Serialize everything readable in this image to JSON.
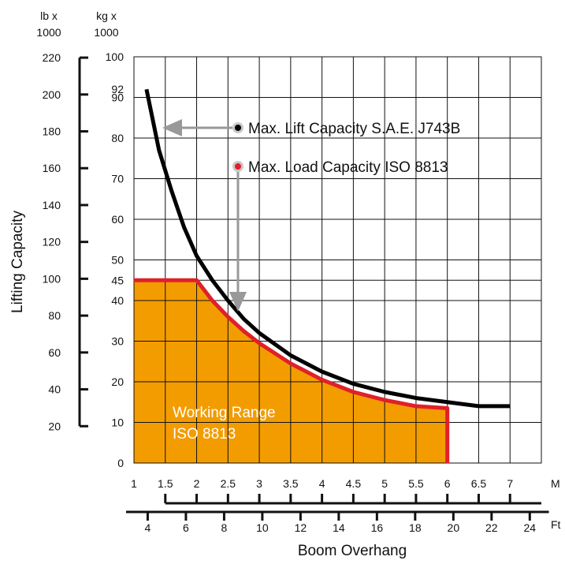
{
  "chart_data": {
    "type": "area",
    "title": "",
    "xlabel": "Boom Overhang",
    "ylabel": "Lifting Capacity",
    "x_unit_top": "M",
    "x_unit_bottom": "Ft",
    "y_unit_left": [
      "lb x",
      "1000"
    ],
    "y_unit_right": [
      "kg x",
      "1000"
    ],
    "xlim_m": [
      1,
      7.5
    ],
    "ylim_kg1000": [
      0,
      100
    ],
    "grid": true,
    "x_ticks_m": [
      "1",
      "1.5",
      "2",
      "2.5",
      "3",
      "3.5",
      "4",
      "4.5",
      "5",
      "5.5",
      "6",
      "6.5",
      "7"
    ],
    "x_ticks_ft": [
      "4",
      "6",
      "8",
      "10",
      "12",
      "14",
      "16",
      "18",
      "20",
      "22",
      "24"
    ],
    "y_ticks_kg": [
      "0",
      "10",
      "20",
      "30",
      "40",
      "45",
      "50",
      "60",
      "70",
      "80",
      "90",
      "92",
      "100"
    ],
    "y_ticks_lb": [
      "20",
      "40",
      "60",
      "80",
      "100",
      "120",
      "140",
      "160",
      "180",
      "200",
      "220"
    ],
    "series": [
      {
        "name": "Max. Lift Capacity S.A.E. J743B",
        "color": "#000000",
        "x": [
          1.2,
          1.4,
          1.6,
          1.8,
          2.0,
          2.25,
          2.5,
          2.75,
          3.0,
          3.5,
          4.0,
          4.5,
          5.0,
          5.5,
          6.0,
          6.5,
          7.0
        ],
        "y": [
          92,
          77,
          67,
          58,
          51,
          45,
          40,
          35.5,
          32,
          26.5,
          22.5,
          19.5,
          17.5,
          16,
          15,
          14,
          14
        ]
      },
      {
        "name": "Max. Load Capacity ISO 8813",
        "color": "#e0202a",
        "x": [
          1.0,
          2.0,
          2.25,
          2.5,
          2.75,
          3.0,
          3.5,
          4.0,
          4.5,
          5.0,
          5.5,
          6.0,
          6.0
        ],
        "y": [
          45,
          45,
          40,
          36,
          32.5,
          29.5,
          24.5,
          20.5,
          17.5,
          15.5,
          14,
          13.5,
          0
        ]
      }
    ],
    "fill_area": {
      "label": [
        "Working Range",
        "ISO 8813"
      ],
      "color": "#f39c00"
    },
    "annotations": [
      {
        "text": "Max. Lift Capacity S.A.E. J743B",
        "marker_color": "#000000",
        "arrow_direction": "left"
      },
      {
        "text": "Max. Load Capacity ISO 8813",
        "marker_color": "#e0202a",
        "arrow_direction": "down"
      }
    ]
  }
}
